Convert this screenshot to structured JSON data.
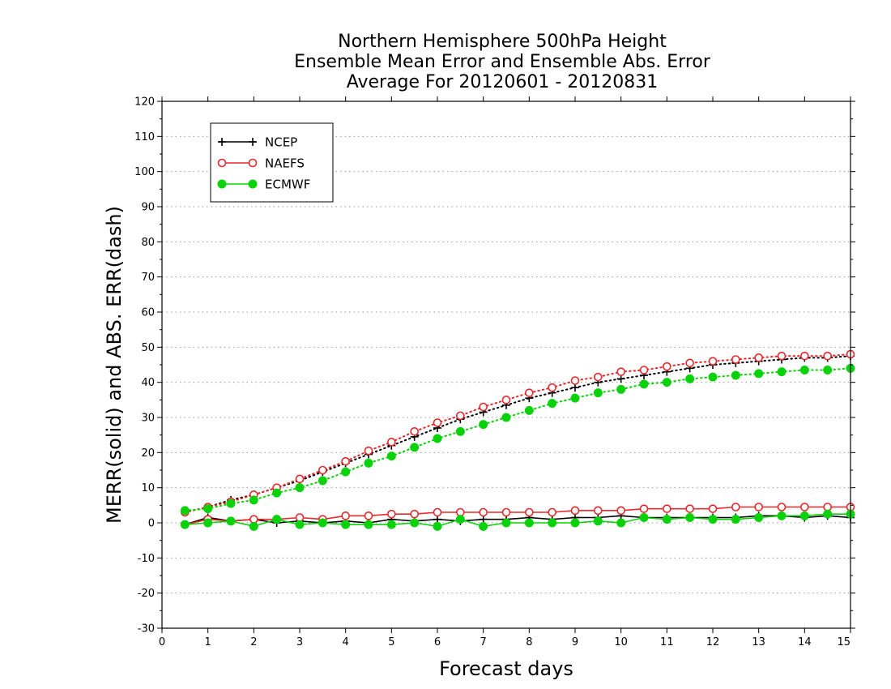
{
  "chart_data": {
    "type": "line",
    "title_lines": [
      "Northern Hemisphere 500hPa Height",
      "Ensemble Mean Error and Ensemble Abs. Error",
      "Average For 20120601 - 20120831"
    ],
    "xlabel": "Forecast days",
    "ylabel": "MERR(solid) and ABS. ERR(dash)",
    "xlim": [
      0,
      15
    ],
    "ylim": [
      -30,
      120
    ],
    "xticks": [
      "0",
      "1",
      "2",
      "3",
      "4",
      "5",
      "6",
      "7",
      "8",
      "9",
      "10",
      "11",
      "12",
      "13",
      "14",
      "15"
    ],
    "yticks": [
      "-30",
      "-20",
      "-10",
      "0",
      "10",
      "20",
      "30",
      "40",
      "50",
      "60",
      "70",
      "80",
      "90",
      "100",
      "110",
      "120"
    ],
    "grid": "horizontal dotted",
    "legend_position": "top-left",
    "legend": [
      {
        "name": "NCEP",
        "color": "#000000",
        "marker": "plus"
      },
      {
        "name": "NAEFS",
        "color": "#e8282c",
        "marker": "open-circle"
      },
      {
        "name": "ECMWF",
        "color": "#0ad20a",
        "marker": "filled-circle"
      }
    ],
    "x": [
      0.5,
      1,
      1.5,
      2,
      2.5,
      3,
      3.5,
      4,
      4.5,
      5,
      5.5,
      6,
      6.5,
      7,
      7.5,
      8,
      8.5,
      9,
      9.5,
      10,
      10.5,
      11,
      11.5,
      12,
      12.5,
      13,
      13.5,
      14,
      14.5,
      15
    ],
    "series": [
      {
        "name": "NCEP",
        "style": "dash",
        "color": "#000000",
        "marker": "plus",
        "values": [
          3,
          4.5,
          6.5,
          8,
          10,
          12,
          14.5,
          17,
          19.5,
          22,
          24.5,
          27,
          29.5,
          31.5,
          33.5,
          35.5,
          37,
          38.5,
          40,
          41,
          42,
          43,
          44,
          45,
          45.5,
          46,
          46.5,
          47,
          47,
          47.5
        ]
      },
      {
        "name": "NCEP",
        "style": "solid",
        "color": "#000000",
        "marker": "plus",
        "values": [
          -0.5,
          1.5,
          0.5,
          1,
          0,
          0.5,
          0,
          0.5,
          0,
          1,
          0.5,
          1,
          0.5,
          1,
          1,
          1.5,
          1,
          1.5,
          1.5,
          2,
          1.5,
          1.5,
          1.5,
          1.5,
          1.5,
          2,
          2,
          1.5,
          2,
          1.5
        ]
      },
      {
        "name": "NAEFS",
        "style": "dash",
        "color": "#e8282c",
        "marker": "open-circle",
        "values": [
          3,
          4.5,
          6,
          8,
          10,
          12.5,
          15,
          17.5,
          20.5,
          23,
          26,
          28.5,
          30.5,
          33,
          35,
          37,
          38.5,
          40.5,
          41.5,
          43,
          43.5,
          44.5,
          45.5,
          46,
          46.5,
          47,
          47.5,
          47.5,
          47.5,
          48
        ]
      },
      {
        "name": "NAEFS",
        "style": "solid",
        "color": "#e8282c",
        "marker": "open-circle",
        "values": [
          -0.5,
          1,
          0.5,
          1,
          1,
          1.5,
          1,
          2,
          2,
          2.5,
          2.5,
          3,
          3,
          3,
          3,
          3,
          3,
          3.5,
          3.5,
          3.5,
          4,
          4,
          4,
          4,
          4.5,
          4.5,
          4.5,
          4.5,
          4.5,
          4.5
        ]
      },
      {
        "name": "ECMWF",
        "style": "dash",
        "color": "#0ad20a",
        "marker": "filled-circle",
        "values": [
          3.5,
          4,
          5.5,
          6.5,
          8.5,
          10,
          12,
          14.5,
          17,
          19,
          21.5,
          24,
          26,
          28,
          30,
          32,
          34,
          35.5,
          37,
          38,
          39.5,
          40,
          41,
          41.5,
          42,
          42.5,
          43,
          43.5,
          43.5,
          44
        ]
      },
      {
        "name": "ECMWF",
        "style": "solid",
        "color": "#0ad20a",
        "marker": "filled-circle",
        "values": [
          -0.5,
          0,
          0.5,
          -1,
          1,
          -0.5,
          0,
          -0.5,
          -0.5,
          -0.5,
          0,
          -1,
          1,
          -1,
          0,
          0,
          0,
          0,
          0.5,
          0,
          1.5,
          1,
          1.5,
          1,
          1,
          1.5,
          2,
          2,
          2.5,
          2.5
        ]
      }
    ]
  }
}
